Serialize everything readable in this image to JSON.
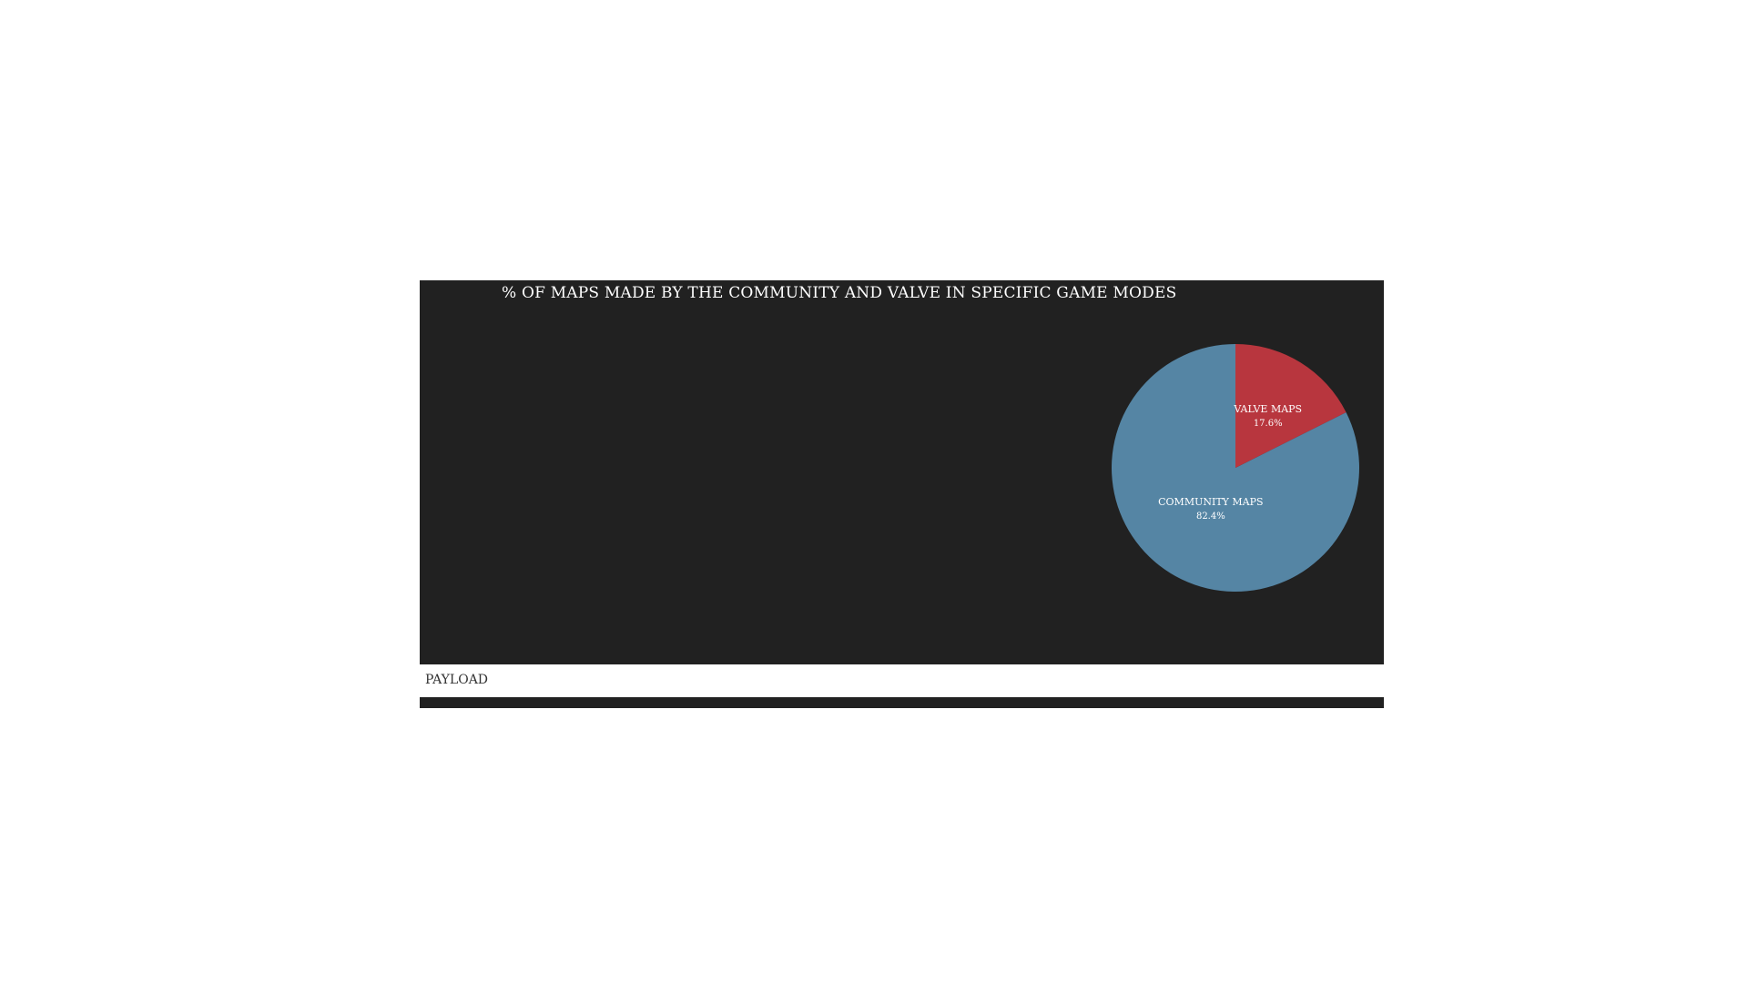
{
  "chart_data": {
    "type": "pie",
    "title": "% OF MAPS MADE BY THE COMMUNITY AND VALVE IN SPECIFIC GAME MODES",
    "slices": [
      {
        "name": "COMMUNITY MAPS",
        "value": 82.4,
        "label": "82.4%",
        "color": "#5585a4"
      },
      {
        "name": "VALVE MAPS",
        "value": 17.6,
        "label": "17.6%",
        "color": "#b8363e"
      }
    ],
    "start_angle_deg": 0,
    "direction": "counter-clockwise"
  },
  "game_mode": {
    "label": "PAYLOAD"
  },
  "colors": {
    "panel_background": "#212121",
    "page_background": "#ffffff",
    "text_light": "#ffffff",
    "text_dark": "#333333"
  }
}
